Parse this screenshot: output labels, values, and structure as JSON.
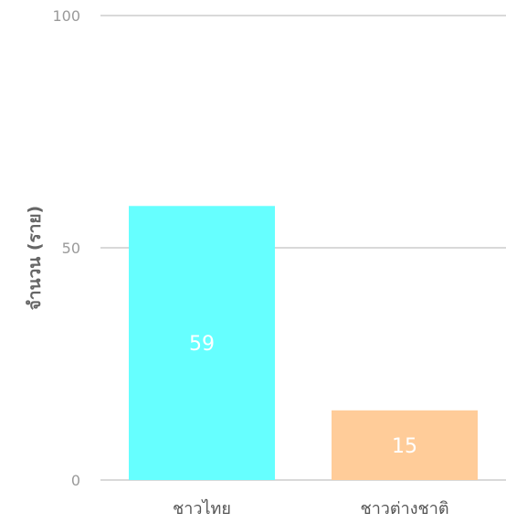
{
  "chart_data": {
    "type": "bar",
    "categories": [
      "ชาวไทย",
      "ชาวต่างชาติ"
    ],
    "values": [
      59,
      15
    ],
    "ylabel": "จำนวน (ราย)",
    "xlabel": "",
    "ylim": [
      0,
      100
    ],
    "yticks": [
      0,
      50,
      100
    ],
    "grid": true,
    "colors": [
      "#66ffff",
      "#ffcc99"
    ],
    "gridline_color": "#d9d9d9",
    "data_label_color": "#ffffff"
  }
}
